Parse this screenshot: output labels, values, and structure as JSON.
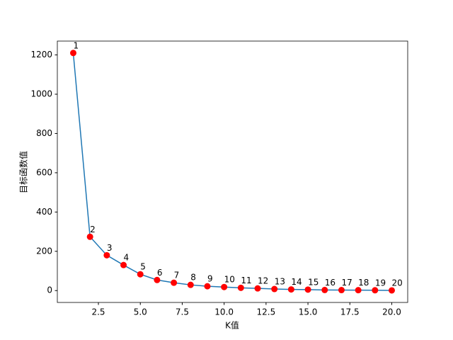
{
  "chart_data": {
    "type": "line",
    "xlabel": "K值",
    "ylabel": "目标函数值",
    "x": [
      1,
      2,
      3,
      4,
      5,
      6,
      7,
      8,
      9,
      10,
      11,
      12,
      13,
      14,
      15,
      16,
      17,
      18,
      19,
      20
    ],
    "values": [
      1210,
      274,
      180,
      130,
      83,
      54,
      40,
      29,
      22,
      18,
      14,
      11,
      8,
      6,
      5,
      3,
      2.5,
      2,
      1.5,
      1
    ],
    "line_color": "#1f77b4",
    "marker_color": "#ff0000",
    "xlim": [
      0.05,
      20.95
    ],
    "xticks": [
      2.5,
      {
        "value": 5,
        "label": "5.0"
      },
      7.5,
      {
        "value": 10,
        "label": "10.0"
      },
      12.5,
      {
        "value": 15,
        "label": "15.0"
      },
      17.5,
      {
        "value": 20,
        "label": "20.0"
      }
    ],
    "ylim": [
      -60.5,
      1270.5
    ],
    "yticks": [
      0,
      200,
      400,
      600,
      800,
      1000,
      1200
    ]
  }
}
